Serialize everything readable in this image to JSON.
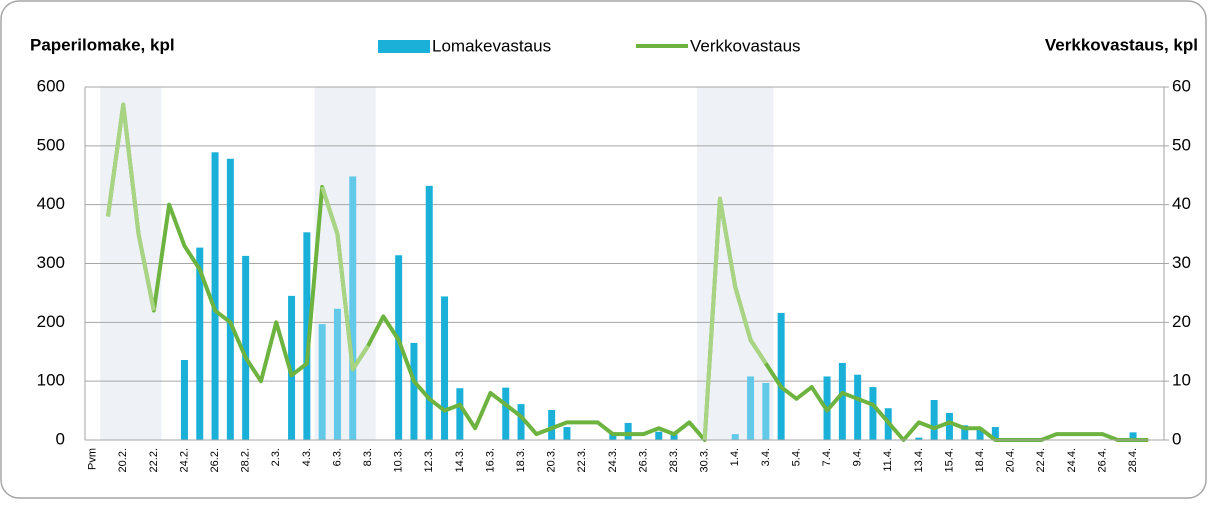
{
  "chart_data": {
    "type": "bar_line",
    "y_title": "Paperilomake, kpl",
    "y2_title": "Verkkovastaus, kpl",
    "categories": [
      "Pvm",
      null,
      "20.2.",
      null,
      "22.2.",
      null,
      "24.2.",
      null,
      "26.2.",
      null,
      "28.2.",
      null,
      "2.3.",
      null,
      "4.3.",
      null,
      "6.3.",
      null,
      "8.3.",
      null,
      "10.3.",
      null,
      "12.3.",
      null,
      "14.3.",
      null,
      "16.3.",
      null,
      "18.3.",
      null,
      "20.3.",
      null,
      "22.3.",
      null,
      "24.3.",
      null,
      "26.3.",
      null,
      "28.3.",
      null,
      "30.3.",
      null,
      "1.4.",
      null,
      "3.4.",
      null,
      "5.4.",
      null,
      "7.4.",
      null,
      "9.4.",
      null,
      "11.4.",
      null,
      "13.4.",
      null,
      "15.4.",
      null,
      "18.4.",
      null,
      "20.4.",
      null,
      "22.4.",
      null,
      "24.4.",
      null,
      "26.4.",
      null,
      "28.4.",
      null
    ],
    "series": [
      {
        "name": "Lomakevastaus",
        "kind": "bar",
        "axis": "y",
        "color": "#1ab0d8",
        "highlight_color": "#62c9e9",
        "values": [
          null,
          null,
          null,
          null,
          null,
          null,
          136,
          327,
          489,
          478,
          313,
          null,
          null,
          245,
          353,
          197,
          223,
          448,
          null,
          null,
          314,
          165,
          432,
          244,
          88,
          null,
          null,
          89,
          61,
          null,
          51,
          22,
          null,
          null,
          13,
          29,
          null,
          14,
          10,
          null,
          null,
          null,
          10,
          108,
          97,
          216,
          null,
          null,
          108,
          131,
          111,
          90,
          54,
          null,
          4,
          68,
          46,
          25,
          17,
          22,
          null,
          null,
          null,
          null,
          null,
          null,
          null,
          null,
          13,
          null
        ]
      },
      {
        "name": "Verkkovastaus",
        "kind": "line",
        "axis": "y2",
        "color": "#6db33f",
        "highlight_color": "#a8d483",
        "values": [
          null,
          38,
          57,
          35,
          22,
          40,
          33,
          29,
          22,
          20,
          14,
          10,
          20,
          11,
          13,
          43,
          35,
          12,
          16,
          21,
          17,
          10,
          7,
          5,
          6,
          2,
          8,
          6,
          4,
          1,
          2,
          3,
          3,
          3,
          1,
          1,
          1,
          2,
          1,
          3,
          0,
          41,
          26,
          17,
          13,
          9,
          7,
          9,
          5,
          8,
          7,
          6,
          3,
          0,
          3,
          2,
          3,
          2,
          2,
          0,
          0,
          0,
          0,
          1,
          1,
          1,
          1,
          0,
          0,
          0
        ]
      }
    ],
    "highlight_spans": [
      [
        1,
        4
      ],
      [
        15,
        18
      ],
      [
        40,
        44
      ]
    ],
    "highlight_fill": "#eef1f6",
    "ylim": [
      0,
      600
    ],
    "yticks": [
      0,
      100,
      200,
      300,
      400,
      500,
      600
    ],
    "y2lim": [
      0,
      60
    ],
    "y2ticks": [
      0,
      10,
      20,
      30,
      40,
      50,
      60
    ],
    "grid": true,
    "legend": "top"
  }
}
